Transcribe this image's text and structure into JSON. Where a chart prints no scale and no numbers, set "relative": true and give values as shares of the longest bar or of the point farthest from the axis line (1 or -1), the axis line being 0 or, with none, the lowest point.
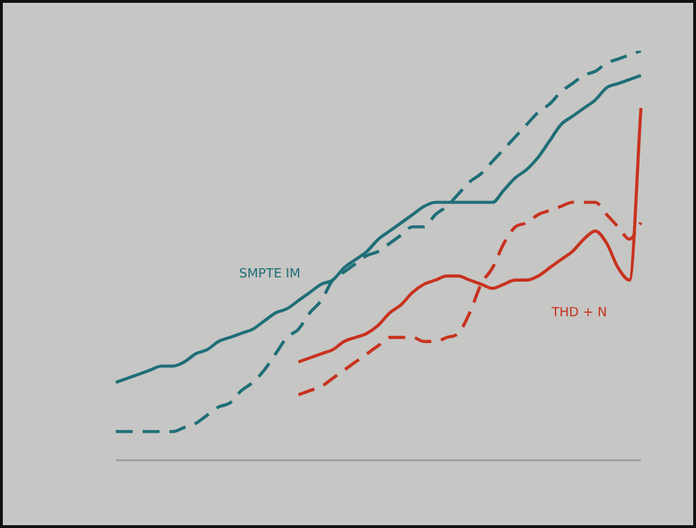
{
  "chart_data": {
    "type": "line",
    "relative": true,
    "marker": "none",
    "categories": [
      null,
      null,
      null,
      null,
      null,
      null,
      null,
      null,
      null,
      null,
      null,
      null,
      null,
      null,
      null,
      null,
      null,
      null,
      null,
      null,
      null,
      null,
      null,
      null,
      null,
      null,
      null,
      null,
      null,
      null,
      null,
      null,
      null,
      null,
      null,
      null,
      null,
      null,
      null,
      null,
      null,
      null,
      null,
      null,
      null,
      null,
      null
    ],
    "annotations": [
      "SMPTE IM",
      "THD + N"
    ],
    "series": [
      {
        "color": "#1f6e78",
        "line_style": "solid",
        "values": [
          0.19,
          0.2,
          0.21,
          0.22,
          0.23,
          0.23,
          0.24,
          0.26,
          0.27,
          0.29,
          0.3,
          0.31,
          0.32,
          0.34,
          0.36,
          0.37,
          0.39,
          0.41,
          0.43,
          0.44,
          0.47,
          0.49,
          0.51,
          0.54,
          0.56,
          0.58,
          0.6,
          0.62,
          0.63,
          0.63,
          0.63,
          0.63,
          0.63,
          0.63,
          0.66,
          0.69,
          0.71,
          0.74,
          0.78,
          0.82,
          0.84,
          0.86,
          0.88,
          0.91,
          0.92,
          0.93,
          0.94
        ]
      },
      {
        "color": "#1f6e78",
        "line_style": "dashed",
        "values": [
          0.07,
          0.07,
          0.07,
          0.07,
          0.07,
          0.07,
          0.08,
          0.09,
          0.11,
          0.13,
          0.14,
          0.17,
          0.19,
          0.22,
          0.26,
          0.3,
          0.32,
          0.36,
          0.39,
          0.44,
          0.46,
          0.48,
          0.5,
          0.51,
          0.53,
          0.55,
          0.57,
          0.57,
          0.6,
          0.62,
          0.65,
          0.68,
          0.7,
          0.73,
          0.76,
          0.79,
          0.82,
          0.85,
          0.87,
          0.9,
          0.92,
          0.94,
          0.95,
          0.97,
          0.98,
          0.99,
          1
        ]
      },
      {
        "color": "#c8321e",
        "line_style": "solid",
        "values": [
          null,
          null,
          null,
          null,
          null,
          null,
          null,
          null,
          null,
          null,
          null,
          null,
          null,
          null,
          null,
          null,
          0.24,
          0.25,
          0.26,
          0.27,
          0.29,
          0.3,
          0.31,
          0.33,
          0.36,
          0.38,
          0.41,
          0.43,
          0.44,
          0.45,
          0.45,
          0.44,
          0.43,
          0.42,
          0.43,
          0.44,
          0.44,
          0.45,
          0.47,
          0.49,
          0.51,
          0.54,
          0.56,
          0.53,
          0.47,
          0.44,
          0.86
        ]
      },
      {
        "color": "#c8321e",
        "line_style": "dashed",
        "values": [
          null,
          null,
          null,
          null,
          null,
          null,
          null,
          null,
          null,
          null,
          null,
          null,
          null,
          null,
          null,
          null,
          0.16,
          0.17,
          0.18,
          0.2,
          0.22,
          0.24,
          0.26,
          0.28,
          0.3,
          0.3,
          0.3,
          0.29,
          0.29,
          0.3,
          0.31,
          0.36,
          0.43,
          0.47,
          0.53,
          0.57,
          0.58,
          0.6,
          0.61,
          0.62,
          0.63,
          0.63,
          0.63,
          0.6,
          0.57,
          0.54,
          0.58
        ]
      }
    ]
  }
}
